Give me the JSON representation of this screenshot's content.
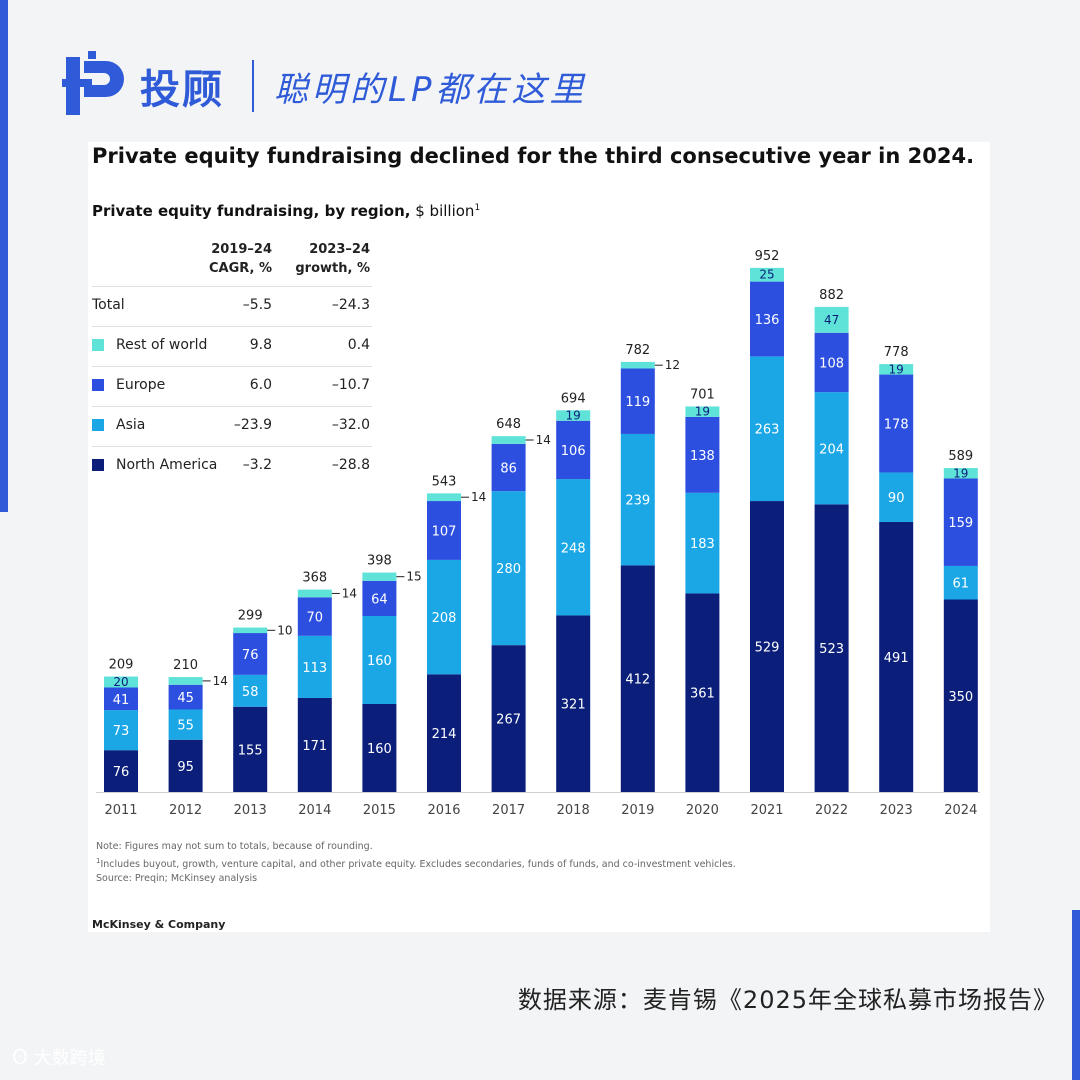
{
  "brand": {
    "name": "投顾",
    "slogan": "聪明的LP都在这里"
  },
  "chart_title": "Private equity fundraising declined for the third consecutive year in 2024.",
  "chart_subtitle_bold": "Private equity fundraising, by region,",
  "chart_subtitle_unit": "$ billion",
  "chart_subtitle_note": "1",
  "legend_table": {
    "col1_header": [
      "2019–24",
      "CAGR, %"
    ],
    "col2_header": [
      "2023–24",
      "growth, %"
    ],
    "rows": [
      {
        "label": "Total",
        "cagr": "–5.5",
        "growth": "–24.3",
        "color": ""
      },
      {
        "label": "Rest of world",
        "cagr": "9.8",
        "growth": "0.4",
        "color": "#5fe3d9"
      },
      {
        "label": "Europe",
        "cagr": "6.0",
        "growth": "–10.7",
        "color": "#2c4fe0"
      },
      {
        "label": "Asia",
        "cagr": "–23.9",
        "growth": "–32.0",
        "color": "#1ba7e6"
      },
      {
        "label": "North America",
        "cagr": "–3.2",
        "growth": "–28.8",
        "color": "#0a1e7a"
      }
    ]
  },
  "chart_data": {
    "type": "bar",
    "stacked": true,
    "title": "Private equity fundraising declined for the third consecutive year in 2024.",
    "ylabel": "$ billion",
    "categories": [
      "2011",
      "2012",
      "2013",
      "2014",
      "2015",
      "2016",
      "2017",
      "2018",
      "2019",
      "2020",
      "2021",
      "2022",
      "2023",
      "2024"
    ],
    "series": [
      {
        "name": "North America",
        "color": "#0a1e7a",
        "values": [
          76,
          95,
          155,
          171,
          160,
          214,
          267,
          321,
          412,
          361,
          529,
          523,
          491,
          350
        ]
      },
      {
        "name": "Asia",
        "color": "#1ba7e6",
        "values": [
          73,
          55,
          58,
          113,
          160,
          208,
          280,
          248,
          239,
          183,
          263,
          204,
          90,
          61
        ]
      },
      {
        "name": "Europe",
        "color": "#2c4fe0",
        "values": [
          41,
          45,
          76,
          70,
          64,
          107,
          86,
          106,
          119,
          138,
          136,
          108,
          178,
          159
        ]
      },
      {
        "name": "Rest of world",
        "color": "#5fe3d9",
        "values": [
          20,
          14,
          10,
          14,
          15,
          14,
          14,
          19,
          12,
          19,
          25,
          47,
          19,
          19
        ]
      }
    ],
    "totals": [
      209,
      210,
      299,
      368,
      398,
      543,
      648,
      694,
      782,
      701,
      952,
      882,
      778,
      589
    ],
    "ylim": [
      0,
      1000
    ]
  },
  "notes": {
    "line1": "Note: Figures may not sum to totals, because of rounding.",
    "line2_mark": "1",
    "line2": "Includes buyout, growth, venture capital, and other private equity. Excludes secondaries, funds of funds, and co-investment vehicles.",
    "line3": "Source: Preqin; McKinsey analysis"
  },
  "publisher": "McKinsey & Company",
  "source_text": "数据来源：麦肯锡《2025年全球私募市场报告》",
  "watermark": "大数跨境",
  "colors": {
    "accent": "#2f5bd8"
  }
}
